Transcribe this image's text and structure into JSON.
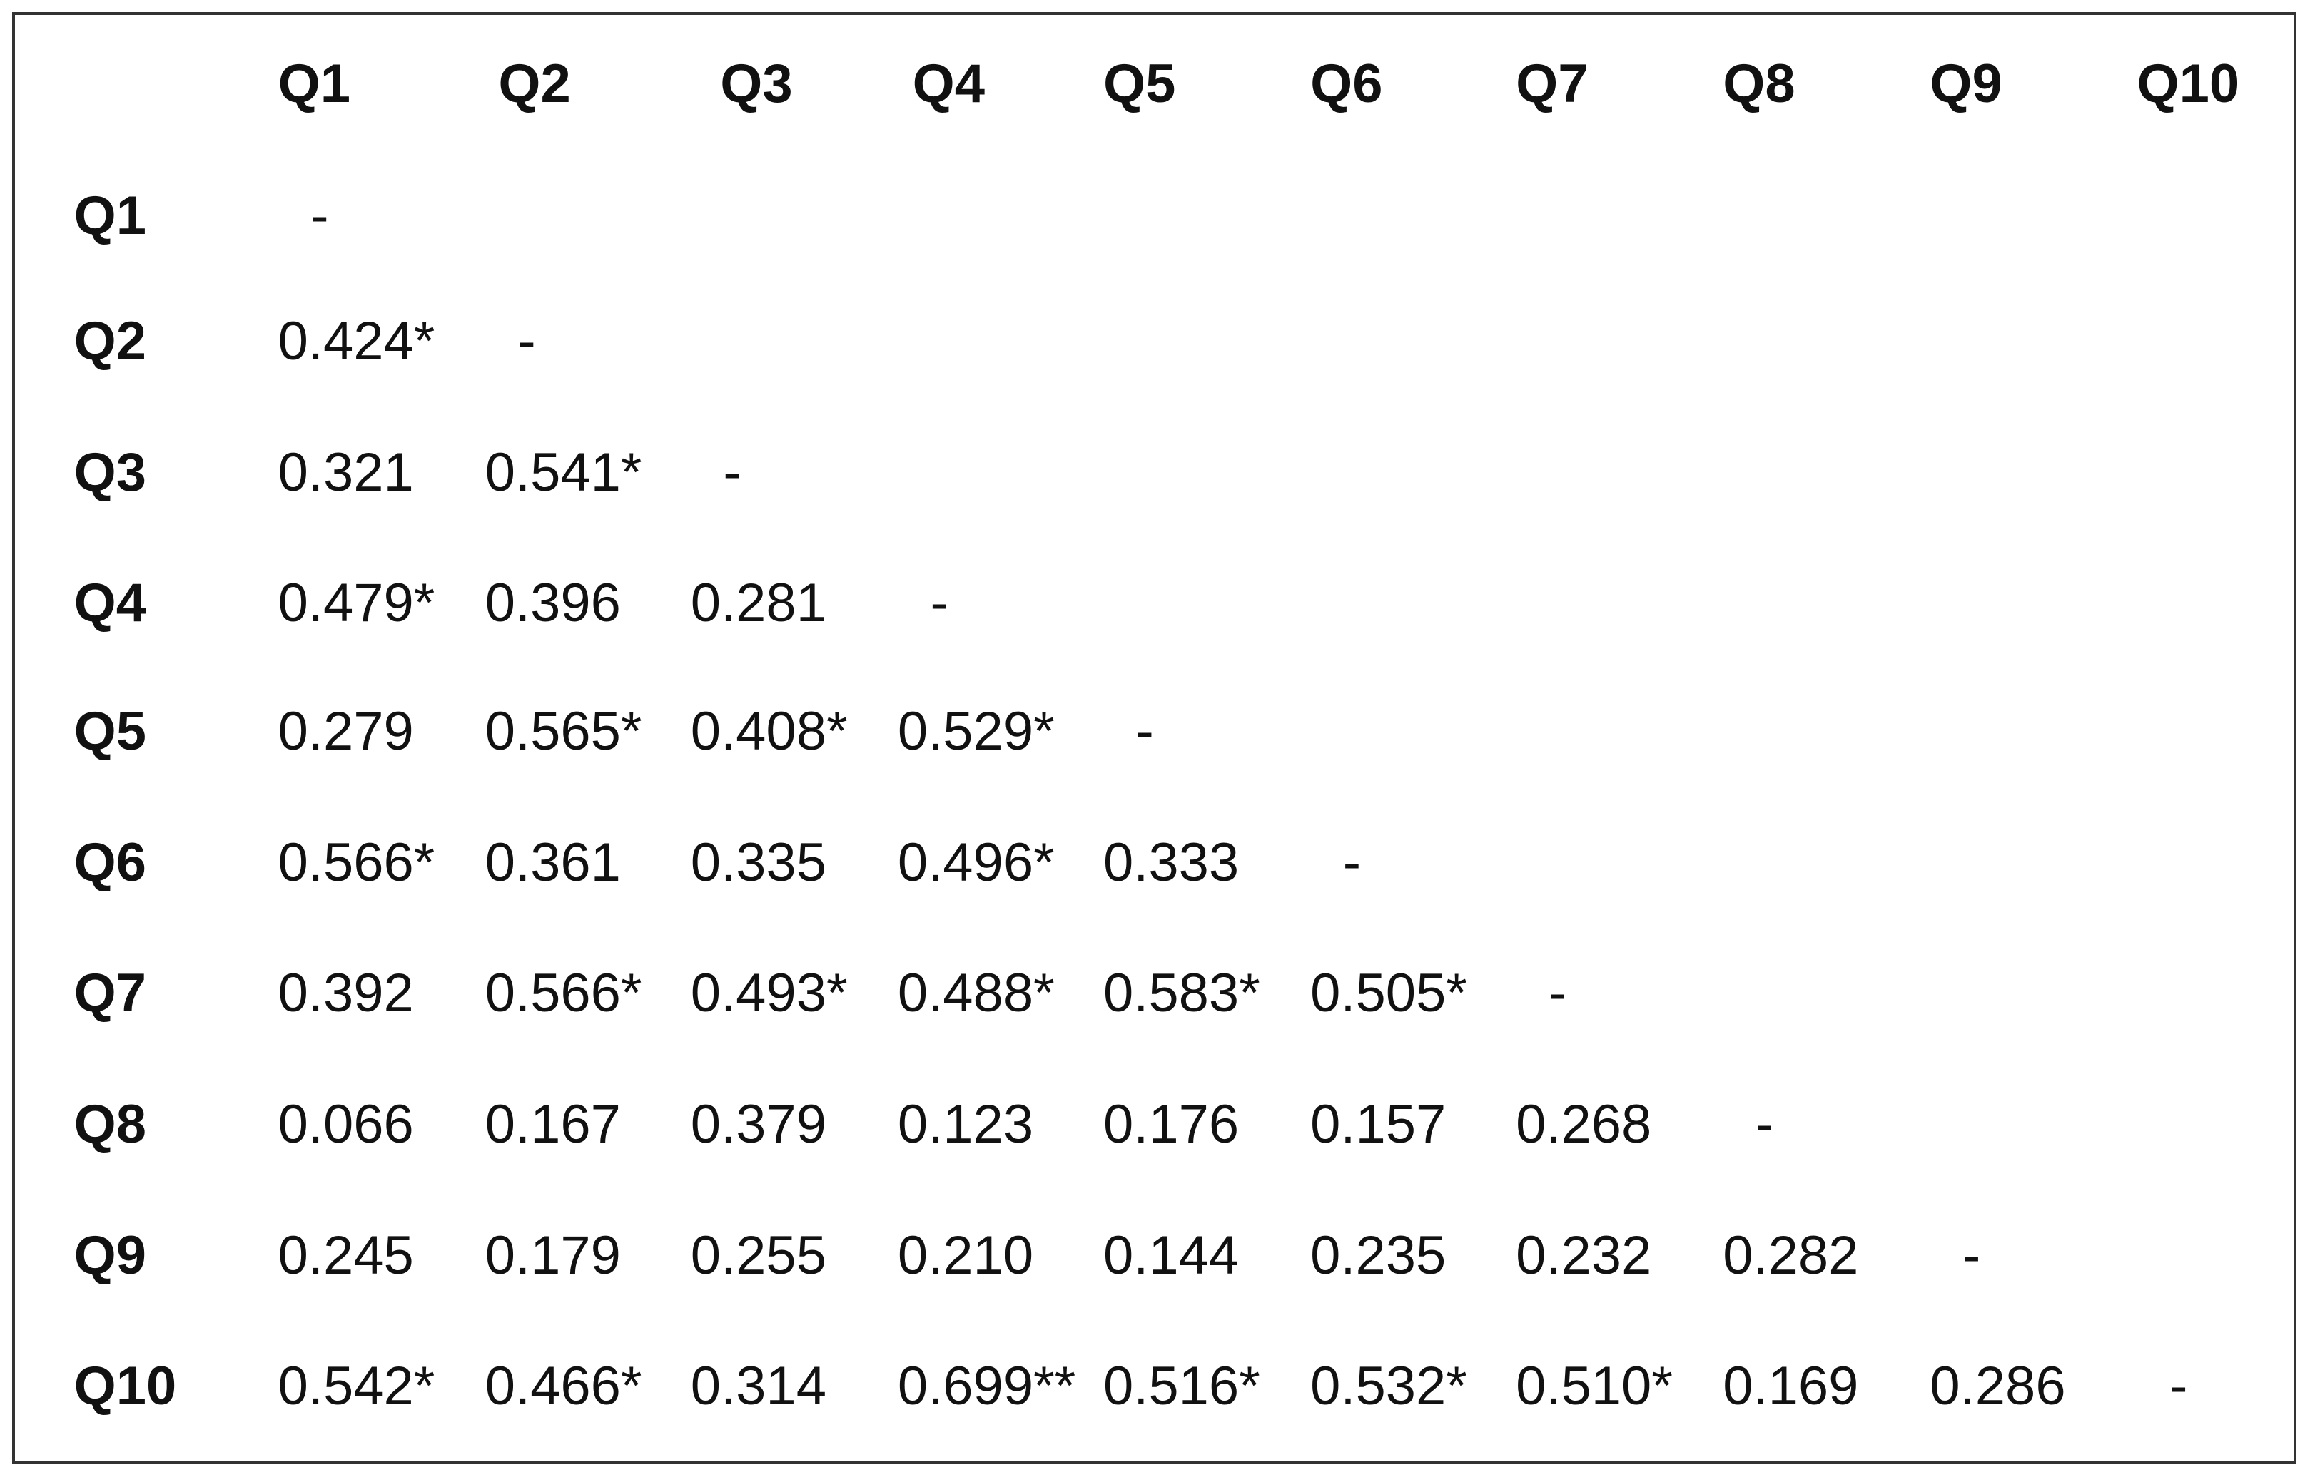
{
  "table": {
    "columns": [
      "Q1",
      "Q2",
      "Q3",
      "Q4",
      "Q5",
      "Q6",
      "Q7",
      "Q8",
      "Q9",
      "Q10"
    ],
    "rows": [
      {
        "label": "Q1",
        "cells": [
          "-"
        ]
      },
      {
        "label": "Q2",
        "cells": [
          "0.424*",
          "-"
        ]
      },
      {
        "label": "Q3",
        "cells": [
          "0.321",
          "0.541*",
          "-"
        ]
      },
      {
        "label": "Q4",
        "cells": [
          "0.479*",
          "0.396",
          "0.281",
          "-"
        ]
      },
      {
        "label": "Q5",
        "cells": [
          "0.279",
          "0.565*",
          "0.408*",
          "0.529*",
          "-"
        ]
      },
      {
        "label": "Q6",
        "cells": [
          "0.566*",
          "0.361",
          "0.335",
          "0.496*",
          "0.333",
          "-"
        ]
      },
      {
        "label": "Q7",
        "cells": [
          "0.392",
          "0.566*",
          "0.493*",
          "0.488*",
          "0.583*",
          "0.505*",
          "-"
        ]
      },
      {
        "label": "Q8",
        "cells": [
          "0.066",
          "0.167",
          "0.379",
          "0.123",
          "0.176",
          "0.157",
          "0.268",
          "-"
        ]
      },
      {
        "label": "Q9",
        "cells": [
          "0.245",
          "0.179",
          "0.255",
          "0.210",
          "0.144",
          "0.235",
          "0.232",
          "0.282",
          "-"
        ]
      },
      {
        "label": "Q10",
        "cells": [
          "0.542*",
          "0.466*",
          "0.314",
          "0.699**",
          "0.516*",
          "0.532*",
          "0.510*",
          "0.169",
          "0.286",
          "-"
        ]
      }
    ]
  }
}
